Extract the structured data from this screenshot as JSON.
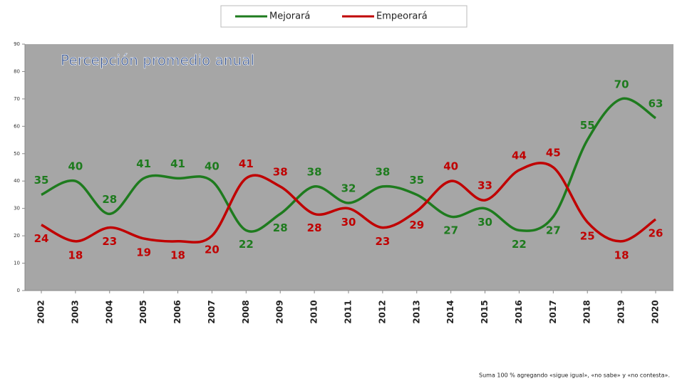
{
  "chart_data": {
    "type": "line",
    "title": "Percepción promedio anual",
    "footnote": "Suma 100 % agregando «sigue igual», «no sabe» y «no contesta».",
    "categories": [
      "2002",
      "2003",
      "2004",
      "2005",
      "2006",
      "2007",
      "2008",
      "2009",
      "2010",
      "2011",
      "2012",
      "2013",
      "2014",
      "2015",
      "2016",
      "2017",
      "2018",
      "2019",
      "2020"
    ],
    "series": [
      {
        "name": "Mejorará",
        "color": "#1e7b1e",
        "values": [
          35,
          40,
          28,
          41,
          41,
          40,
          22,
          28,
          38,
          32,
          38,
          35,
          27,
          30,
          22,
          27,
          55,
          70,
          63
        ]
      },
      {
        "name": "Empeorará",
        "color": "#c00000",
        "values": [
          24,
          18,
          23,
          19,
          18,
          20,
          41,
          38,
          28,
          30,
          23,
          29,
          40,
          33,
          44,
          45,
          25,
          18,
          26
        ]
      }
    ],
    "ylim": [
      0,
      90
    ],
    "yticks": [
      0,
      10,
      20,
      30,
      40,
      50,
      60,
      70,
      80,
      90
    ],
    "smooth": true
  }
}
